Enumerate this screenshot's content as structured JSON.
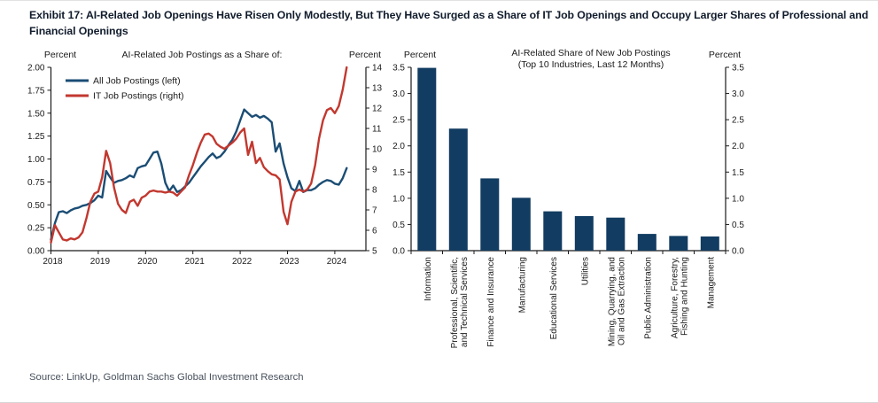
{
  "page": {
    "title": "Exhibit 17: AI-Related Job Openings Have Risen Only Modestly, But They Have Surged as a Share of IT Job Openings and Occupy Larger Shares of Professional and Financial Openings",
    "source": "Source: LinkUp, Goldman Sachs Global Investment Research"
  },
  "colors": {
    "line_blue": "#1b4d74",
    "line_red": "#c2382f",
    "bar_navy": "#123c61",
    "axis": "#1a1a1a"
  },
  "chart_data": [
    {
      "type": "line",
      "title": "AI-Related Job Postings as a Share of:",
      "left_axis": {
        "title": "Percent",
        "min": 0,
        "max": 2,
        "step": 0.25,
        "ticks": [
          "0.00",
          "0.25",
          "0.50",
          "0.75",
          "1.00",
          "1.25",
          "1.50",
          "1.75",
          "2.00"
        ]
      },
      "right_axis": {
        "title": "Percent",
        "min": 5,
        "max": 14,
        "step": 1,
        "ticks": [
          "5",
          "6",
          "7",
          "8",
          "9",
          "10",
          "11",
          "12",
          "13",
          "14"
        ]
      },
      "x_axis": {
        "ticks": [
          "2018",
          "2019",
          "2020",
          "2021",
          "2022",
          "2023",
          "2024"
        ],
        "start_year": 2018
      },
      "legend_position": "top-left-inside",
      "series": [
        {
          "name": "All Job Postings (left)",
          "axis": "left",
          "color_key": "line_blue",
          "start": "2018-01",
          "frequency": "monthly",
          "values": [
            0.12,
            0.3,
            0.42,
            0.43,
            0.41,
            0.44,
            0.46,
            0.47,
            0.49,
            0.5,
            0.52,
            0.55,
            0.6,
            0.58,
            0.87,
            0.8,
            0.74,
            0.76,
            0.77,
            0.79,
            0.82,
            0.8,
            0.9,
            0.92,
            0.93,
            1.0,
            1.07,
            1.08,
            0.95,
            0.74,
            0.65,
            0.71,
            0.64,
            0.66,
            0.7,
            0.74,
            0.8,
            0.86,
            0.92,
            0.97,
            1.02,
            1.06,
            1.01,
            1.03,
            1.08,
            1.15,
            1.21,
            1.3,
            1.42,
            1.54,
            1.5,
            1.46,
            1.48,
            1.45,
            1.47,
            1.44,
            1.4,
            1.08,
            1.17,
            0.95,
            0.8,
            0.68,
            0.65,
            0.76,
            0.64,
            0.66,
            0.66,
            0.68,
            0.72,
            0.75,
            0.77,
            0.76,
            0.73,
            0.72,
            0.79,
            0.9
          ]
        },
        {
          "name": "IT Job Postings (right)",
          "axis": "right",
          "color_key": "line_red",
          "start": "2018-01",
          "frequency": "monthly",
          "values": [
            5.4,
            6.25,
            5.9,
            5.55,
            5.5,
            5.6,
            5.55,
            5.65,
            5.9,
            6.6,
            7.4,
            7.8,
            7.9,
            8.6,
            9.9,
            9.3,
            8.1,
            7.3,
            7.0,
            6.85,
            7.4,
            7.5,
            7.2,
            7.6,
            7.7,
            7.9,
            7.95,
            7.9,
            7.9,
            7.85,
            7.9,
            7.85,
            7.7,
            7.9,
            8.1,
            8.7,
            9.2,
            9.8,
            10.3,
            10.7,
            10.75,
            10.6,
            10.25,
            10.1,
            10.0,
            10.15,
            10.3,
            10.5,
            10.8,
            11.0,
            9.7,
            10.35,
            9.3,
            9.55,
            9.1,
            8.9,
            8.75,
            8.7,
            8.5,
            6.9,
            6.3,
            7.4,
            7.9,
            8.0,
            7.9,
            8.0,
            8.3,
            9.2,
            10.5,
            11.4,
            11.9,
            12.0,
            11.75,
            12.1,
            12.9,
            14.0
          ]
        }
      ]
    },
    {
      "type": "bar",
      "title": "AI-Related Share of New Job Postings",
      "subtitle": "(Top 10 Industries, Last 12 Months)",
      "left_axis": {
        "title": "Percent",
        "min": 0,
        "max": 3.5,
        "step": 0.5,
        "ticks": [
          "0.0",
          "0.5",
          "1.0",
          "1.5",
          "2.0",
          "2.5",
          "3.0",
          "3.5"
        ]
      },
      "right_axis": {
        "title": "Percent",
        "min": 0,
        "max": 3.5,
        "step": 0.5,
        "ticks": [
          "0.0",
          "0.5",
          "1.0",
          "1.5",
          "2.0",
          "2.5",
          "3.0",
          "3.5"
        ]
      },
      "categories": [
        {
          "label_lines": [
            "Information"
          ],
          "value": 3.49
        },
        {
          "label_lines": [
            "Professional, Scientific,",
            "and Technical Services"
          ],
          "value": 2.33
        },
        {
          "label_lines": [
            "Finance and Insurance"
          ],
          "value": 1.38
        },
        {
          "label_lines": [
            "Manufacturing"
          ],
          "value": 1.01
        },
        {
          "label_lines": [
            "Educational Services"
          ],
          "value": 0.75
        },
        {
          "label_lines": [
            "Utilities"
          ],
          "value": 0.66
        },
        {
          "label_lines": [
            "Mining, Quarrying, and",
            "Oil and Gas Extraction"
          ],
          "value": 0.63
        },
        {
          "label_lines": [
            "Public Administration"
          ],
          "value": 0.32
        },
        {
          "label_lines": [
            "Agriculture, Forestry,",
            "Fishing and Hunting"
          ],
          "value": 0.28
        },
        {
          "label_lines": [
            "Management"
          ],
          "value": 0.27
        }
      ]
    }
  ]
}
